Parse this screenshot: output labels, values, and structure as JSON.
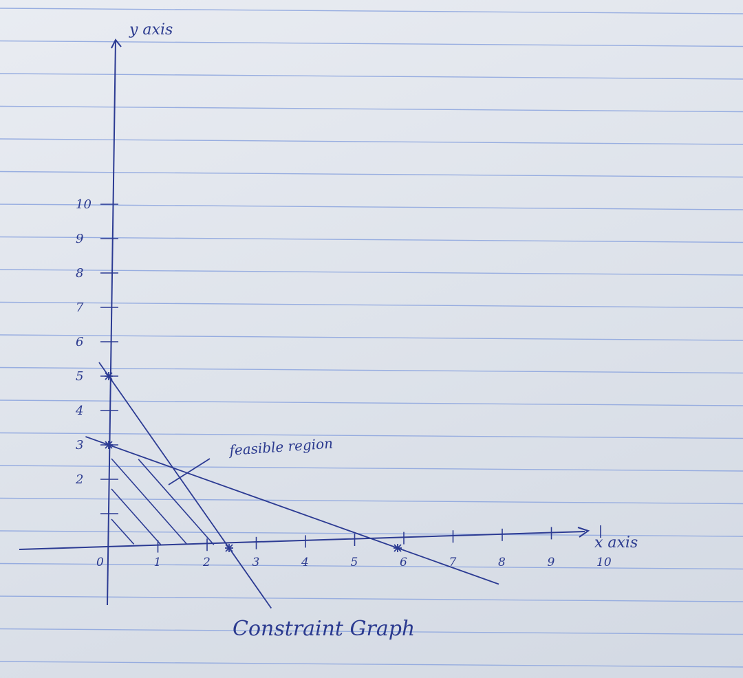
{
  "chart_data": {
    "type": "line",
    "title": "Constraint Graph",
    "xlabel": "x axis",
    "ylabel": "y axis",
    "xlim": [
      0,
      10
    ],
    "ylim": [
      0,
      10
    ],
    "x_ticks": [
      0,
      1,
      2,
      3,
      4,
      5,
      6,
      7,
      8,
      9,
      10
    ],
    "x_tick_labels": [
      "0",
      "1",
      "2",
      "3",
      "4",
      "5",
      "6",
      "7",
      "8",
      "9",
      "10"
    ],
    "y_ticks": [
      1,
      2,
      3,
      4,
      5,
      6,
      7,
      8,
      9,
      10
    ],
    "y_tick_labels": [
      "",
      "2",
      "3",
      "4",
      "5",
      "6",
      "7",
      "8",
      "9",
      "10"
    ],
    "series": [
      {
        "points": [
          [
            0,
            5
          ],
          [
            2.5,
            0
          ]
        ]
      },
      {
        "points": [
          [
            0,
            3
          ],
          [
            6,
            0
          ]
        ]
      }
    ],
    "marked_points": [
      [
        0,
        5
      ],
      [
        0,
        3
      ],
      [
        2.5,
        0
      ],
      [
        6,
        0
      ]
    ],
    "intersection": [
      1.33,
      2.33
    ],
    "annotations": [
      {
        "text": "feasible region",
        "points_to": [
          1.1,
          2.0
        ]
      }
    ],
    "grid": false,
    "shaded_region": [
      [
        0,
        0
      ],
      [
        2.5,
        0
      ],
      [
        1.33,
        2.33
      ],
      [
        0,
        3
      ]
    ],
    "colors": {
      "ink": "#2c3b93",
      "paper_rule": "#8fa7df"
    }
  }
}
